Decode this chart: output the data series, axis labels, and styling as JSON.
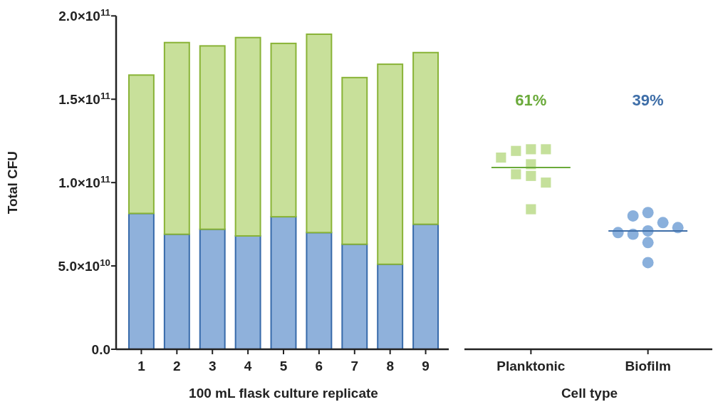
{
  "chart_data": [
    {
      "type": "bar",
      "stacked": true,
      "ylabel": "Total CFU",
      "xlabel": "100 mL flask culture replicate",
      "categories": [
        "1",
        "2",
        "3",
        "4",
        "5",
        "6",
        "7",
        "8",
        "9"
      ],
      "ylim": [
        0,
        200000000000
      ],
      "yticks": [
        {
          "value": 0,
          "label": "0.0"
        },
        {
          "value": 50000000000,
          "label": "5.0×10$^{10}$"
        },
        {
          "value": 100000000000,
          "label": "1.0×10$^{11}$"
        },
        {
          "value": 150000000000,
          "label": "1.5×10$^{11}$"
        },
        {
          "value": 200000000000,
          "label": "2.0×10$^{11}$"
        }
      ],
      "grid": false,
      "series": [
        {
          "color": "#8fb1db",
          "values": [
            81500000000,
            69000000000,
            72000000000,
            68000000000,
            79500000000,
            70000000000,
            63000000000,
            51000000000,
            75000000000
          ]
        },
        {
          "color": "#c8e09a",
          "values": [
            83000000000,
            115000000000,
            110000000000,
            119000000000,
            104000000000,
            119000000000,
            100000000000,
            120000000000,
            103000000000
          ]
        }
      ]
    },
    {
      "type": "scatter",
      "xlabel": "Cell type",
      "categories": [
        "Planktonic",
        "Biofilm"
      ],
      "ylim": [
        0,
        200000000000
      ],
      "tick_labels": "x",
      "grid": false,
      "series": [
        {
          "marker": "square",
          "color": "#c5e09b",
          "x": [
            "Planktonic",
            "Planktonic",
            "Planktonic",
            "Planktonic",
            "Planktonic",
            "Planktonic",
            "Planktonic",
            "Planktonic",
            "Planktonic"
          ],
          "values": [
            120000000000,
            119000000000,
            120000000000,
            115000000000,
            111000000000,
            104000000000,
            105000000000,
            100000000000,
            84000000000
          ]
        },
        {
          "marker": "circle",
          "color": "#8ab0dc",
          "x": [
            "Biofilm",
            "Biofilm",
            "Biofilm",
            "Biofilm",
            "Biofilm",
            "Biofilm",
            "Biofilm",
            "Biofilm",
            "Biofilm"
          ],
          "values": [
            82000000000,
            80000000000,
            76000000000,
            71000000000,
            69000000000,
            70000000000,
            73000000000,
            64000000000,
            52000000000
          ]
        },
        {
          "type": "box",
          "colors": [
            "#6aaa3a",
            "#3e6ea8"
          ],
          "boxes": [
            {
              "low": 109000000000,
              "q1": 109000000000,
              "median": 109000000000,
              "q3": 109000000000,
              "high": 109000000000
            },
            {
              "low": 71000000000,
              "q1": 71000000000,
              "median": 71000000000,
              "q3": 71000000000,
              "high": 71000000000
            }
          ]
        }
      ],
      "annotations": [
        "61%",
        "39%"
      ]
    }
  ]
}
